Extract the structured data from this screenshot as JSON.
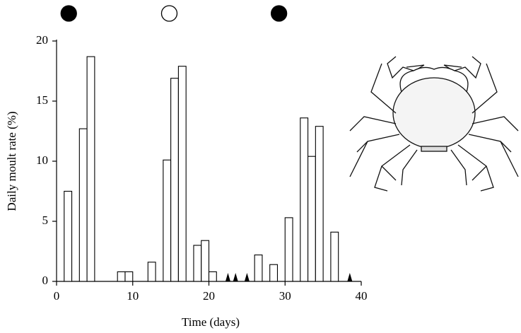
{
  "chart_data": {
    "type": "bar",
    "x_label": "Time (days)",
    "y_label": "Daily moult rate (%)",
    "x": [
      1.5,
      3.5,
      4.5,
      8.5,
      9.5,
      12.5,
      14.5,
      15.5,
      16.5,
      18.5,
      19.5,
      20.5,
      26.5,
      28.5,
      30.5,
      32.5,
      33.5,
      34.5,
      36.5
    ],
    "values": [
      7.5,
      12.7,
      18.7,
      0.8,
      0.8,
      1.6,
      10.1,
      16.9,
      17.9,
      3.0,
      3.4,
      0.8,
      2.2,
      1.4,
      5.3,
      13.6,
      10.4,
      12.9,
      4.1
    ],
    "color": "#ffffff",
    "xlim": [
      0,
      40
    ],
    "xticks": [
      0,
      10,
      20,
      30,
      40
    ],
    "ylim": [
      0,
      20
    ],
    "yticks": [
      0,
      5,
      10,
      15,
      20
    ],
    "event_days": [
      22.5,
      23.5,
      25,
      38.5
    ],
    "moon_phases": [
      {
        "day": 1.6,
        "filled": true
      },
      {
        "day": 14.8,
        "filled": false
      },
      {
        "day": 29.2,
        "filled": true
      }
    ]
  }
}
